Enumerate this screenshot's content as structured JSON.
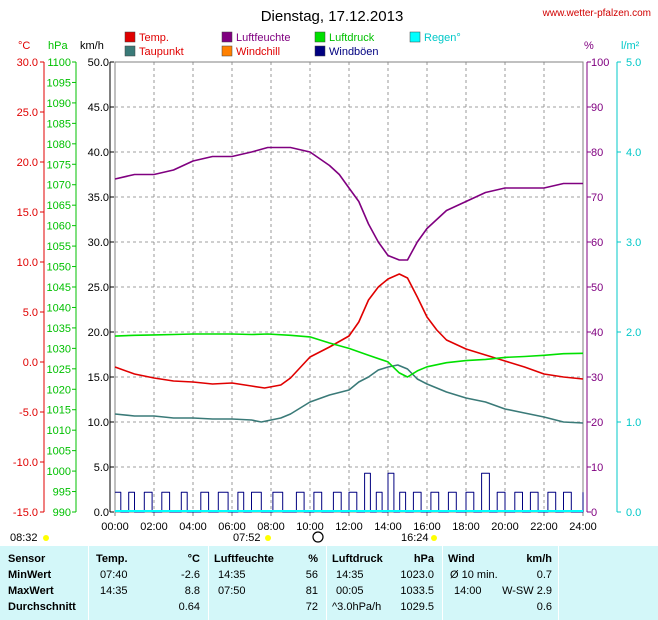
{
  "chart_data": {
    "type": "line",
    "title": "Dienstag, 17.12.2013",
    "source": "www.wetter-pfalzen.com",
    "x_ticks": [
      "00:00",
      "02:00",
      "04:00",
      "06:00",
      "08:00",
      "10:00",
      "12:00",
      "14:00",
      "16:00",
      "18:00",
      "20:00",
      "22:00",
      "24:00"
    ],
    "xlim": [
      0,
      24
    ],
    "axes": {
      "temp": {
        "unit": "°C",
        "range": [
          -15,
          30
        ],
        "ticks": [
          "30.0",
          "25.0",
          "20.0",
          "15.0",
          "10.0",
          "5.0",
          "0.0",
          "-5.0",
          "-10.0",
          "-15.0"
        ],
        "color": "#e00000"
      },
      "pressure": {
        "unit": "hPa",
        "range": [
          990,
          1100
        ],
        "ticks": [
          "1100",
          "1095",
          "1090",
          "1085",
          "1080",
          "1075",
          "1070",
          "1065",
          "1060",
          "1055",
          "1050",
          "1045",
          "1040",
          "1035",
          "1030",
          "1025",
          "1020",
          "1015",
          "1010",
          "1005",
          "1000",
          "995",
          "990"
        ],
        "color": "#00c000"
      },
      "wind": {
        "unit": "km/h",
        "range": [
          0,
          50
        ],
        "ticks": [
          "50.0",
          "45.0",
          "40.0",
          "35.0",
          "30.0",
          "25.0",
          "20.0",
          "15.0",
          "10.0",
          "5.0",
          "0.0"
        ],
        "color": "#000000"
      },
      "humidity": {
        "unit": "%",
        "range": [
          0,
          100
        ],
        "ticks": [
          "100",
          "90",
          "80",
          "70",
          "60",
          "50",
          "40",
          "30",
          "20",
          "10",
          "0"
        ],
        "color": "#800080"
      },
      "rain": {
        "unit": "l/m²",
        "range": [
          0,
          5
        ],
        "ticks": [
          "5.0",
          "4.0",
          "3.0",
          "2.0",
          "1.0",
          "0.0"
        ],
        "color": "#00c8c8"
      }
    },
    "legend": [
      {
        "name": "Temp.",
        "color": "#e00000"
      },
      {
        "name": "Luftfeuchte",
        "color": "#800080"
      },
      {
        "name": "Luftdruck",
        "color": "#00e000"
      },
      {
        "name": "Regen°",
        "color": "#00ffff"
      },
      {
        "name": "Taupunkt",
        "color": "#3a7a78"
      },
      {
        "name": "Windchill",
        "color": "#ff8000"
      },
      {
        "name": "Windböen",
        "color": "#000080"
      }
    ],
    "series": [
      {
        "name": "Temp.",
        "axis": "temp",
        "color": "#e00000",
        "x": [
          0,
          1,
          2,
          3,
          4,
          5,
          6,
          7,
          7.67,
          8.5,
          9,
          10,
          11,
          12,
          12.5,
          13,
          13.5,
          14,
          14.58,
          15,
          15.5,
          16,
          16.5,
          17,
          18,
          19,
          20,
          21,
          22,
          23,
          24
        ],
        "y": [
          -0.5,
          -1.2,
          -1.6,
          -1.9,
          -2.0,
          -2.2,
          -2.1,
          -2.4,
          -2.6,
          -2.3,
          -1.6,
          0.5,
          1.5,
          2.6,
          4.0,
          6.2,
          7.5,
          8.3,
          8.8,
          8.4,
          6.5,
          4.5,
          3.2,
          2.2,
          1.3,
          0.7,
          0.1,
          -0.5,
          -1.2,
          -1.5,
          -1.7
        ]
      },
      {
        "name": "Taupunkt",
        "axis": "temp",
        "color": "#3a7a78",
        "x": [
          0,
          1,
          2,
          3,
          4,
          5,
          6,
          7,
          7.5,
          8,
          8.5,
          9,
          10,
          11,
          12,
          12.5,
          13,
          13.5,
          14,
          14.5,
          15,
          15.5,
          16,
          17,
          18,
          19,
          20,
          21,
          22,
          23,
          24
        ],
        "y": [
          -5.2,
          -5.4,
          -5.4,
          -5.6,
          -5.6,
          -5.7,
          -5.7,
          -5.8,
          -6.0,
          -5.8,
          -5.6,
          -5.2,
          -4.0,
          -3.3,
          -2.8,
          -2.0,
          -1.5,
          -0.8,
          -0.5,
          -0.3,
          -0.7,
          -1.7,
          -2.2,
          -3.0,
          -3.6,
          -4.0,
          -4.7,
          -5.1,
          -5.5,
          -6.0,
          -6.1
        ]
      },
      {
        "name": "Luftfeuchte",
        "axis": "humidity",
        "color": "#800080",
        "x": [
          0,
          1,
          2,
          3,
          4,
          5,
          6,
          7,
          7.83,
          9,
          10,
          11,
          11.5,
          12,
          12.5,
          13,
          13.5,
          14,
          14.58,
          15,
          15.5,
          16,
          17,
          18,
          19,
          20,
          21,
          22,
          23,
          24
        ],
        "y": [
          74,
          75,
          75,
          76,
          78,
          79,
          79,
          80,
          81,
          81,
          80,
          77,
          75,
          72,
          69,
          64,
          60,
          57,
          56,
          56,
          60,
          63,
          67,
          69,
          71,
          72,
          72,
          72,
          73,
          73
        ]
      },
      {
        "name": "Luftdruck",
        "axis": "pressure",
        "color": "#00e000",
        "x": [
          0,
          1,
          2,
          3,
          4,
          5,
          6,
          7,
          7.83,
          9,
          10,
          11,
          12,
          13,
          14,
          14.58,
          15,
          15.5,
          16,
          17,
          18,
          19,
          20,
          21,
          22,
          23,
          24
        ],
        "y": [
          1033.0,
          1033.2,
          1033.3,
          1033.4,
          1033.5,
          1033.5,
          1033.5,
          1033.4,
          1033.5,
          1033.2,
          1032.8,
          1031.3,
          1030.0,
          1028.3,
          1026.7,
          1024.0,
          1023.0,
          1024.5,
          1025.5,
          1026.5,
          1027.0,
          1027.3,
          1027.8,
          1028.0,
          1028.3,
          1028.7,
          1028.8
        ]
      },
      {
        "name": "Windböen",
        "axis": "wind",
        "color": "#000080",
        "type": "step",
        "x": [
          0,
          0.3,
          0.7,
          1.0,
          1.5,
          1.9,
          2.4,
          2.8,
          3.4,
          3.7,
          4.4,
          4.8,
          5.3,
          5.8,
          6.3,
          6.6,
          7.0,
          7.5,
          8.1,
          8.6,
          9.3,
          9.7,
          10.2,
          10.6,
          11.2,
          11.6,
          12.0,
          12.4,
          12.8,
          13.1,
          13.4,
          13.7,
          14.0,
          14.3,
          14.6,
          14.9,
          15.3,
          15.7,
          16.2,
          16.6,
          17.1,
          17.5,
          18.0,
          18.4,
          18.8,
          19.2,
          19.6,
          20.0,
          20.5,
          20.9,
          21.3,
          21.7,
          22.2,
          22.6,
          23.0,
          23.4,
          24.0
        ],
        "y": [
          2.2,
          0,
          2.2,
          0,
          2.2,
          0,
          2.2,
          0,
          2.2,
          0,
          2.2,
          0,
          2.2,
          0,
          2.2,
          0,
          2.2,
          0,
          2.2,
          0,
          2.2,
          0,
          2.2,
          0,
          2.2,
          0,
          2.2,
          0,
          4.3,
          0,
          2.2,
          0,
          4.3,
          0,
          2.2,
          0,
          2.2,
          0,
          2.2,
          0,
          2.2,
          0,
          2.2,
          0,
          4.3,
          0,
          2.2,
          0,
          2.2,
          0,
          2.2,
          0,
          2.2,
          0,
          2.2,
          0,
          2.2
        ]
      }
    ],
    "time_markers": {
      "sunrise": "08:32",
      "sunset": "16:24",
      "bottom_left": "07:52"
    },
    "grid": true
  },
  "stats": {
    "headers": {
      "sensor": "Sensor",
      "temp": "Temp.",
      "temp_unit": "°C",
      "hum": "Luftfeuchte",
      "hum_unit": "%",
      "press": "Luftdruck",
      "press_unit": "hPa",
      "wind": "Wind",
      "wind_unit": "km/h"
    },
    "rows": [
      {
        "label": "MinWert",
        "temp_time": "07:40",
        "temp_val": "-2.6",
        "hum_time": "14:35",
        "hum_val": "56",
        "press_time": "14:35",
        "press_val": "1023.0",
        "wind_time": "Ø 10 min.",
        "wind_val": "0.7"
      },
      {
        "label": "MaxWert",
        "temp_time": "14:35",
        "temp_val": "8.8",
        "hum_time": "07:50",
        "hum_val": "81",
        "press_time": "00:05",
        "press_val": "1033.5",
        "wind_time": "14:00",
        "wind_val": "W-SW 2.9"
      },
      {
        "label": "Durchschnitt",
        "temp_time": "",
        "temp_val": "0.64",
        "hum_time": "",
        "hum_val": "72",
        "press_time": "^3.0hPa/h",
        "press_val": "1029.5",
        "wind_time": "",
        "wind_val": "0.6"
      }
    ]
  }
}
